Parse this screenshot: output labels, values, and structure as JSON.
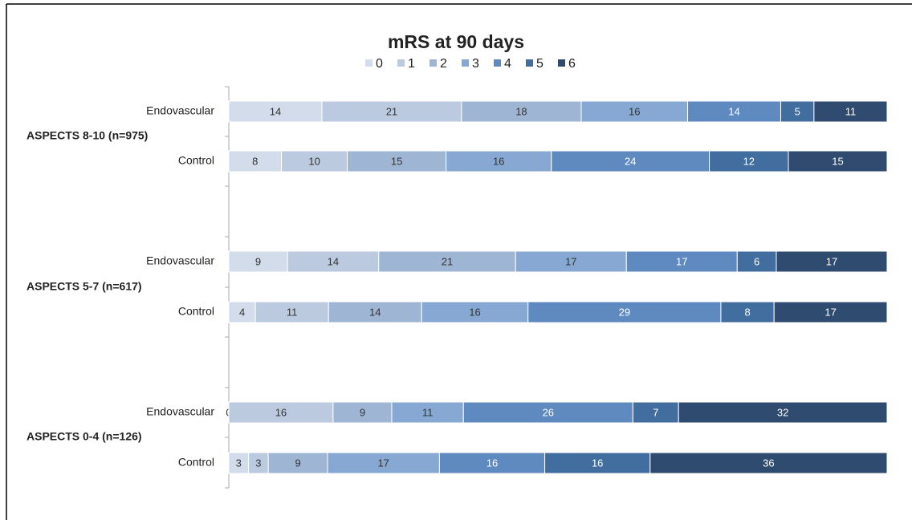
{
  "chart_data": {
    "type": "stacked-bar",
    "orientation": "horizontal",
    "title": "mRS at 90 days",
    "groups": [
      "ASPECTS 8-10 (n=975)",
      "ASPECTS 5-7 (n=617)",
      "ASPECTS 0-4 (n=126)"
    ],
    "categories": [
      "Endovascular",
      "Control",
      "Endovascular",
      "Control",
      "Endovascular",
      "Control"
    ],
    "series": [
      {
        "name": "0",
        "color": "#d3dcea",
        "values": [
          14,
          8,
          9,
          4,
          0,
          3
        ]
      },
      {
        "name": "1",
        "color": "#bccadf",
        "values": [
          21,
          10,
          14,
          11,
          16,
          3
        ]
      },
      {
        "name": "2",
        "color": "#9fb5d4",
        "values": [
          18,
          15,
          21,
          14,
          9,
          9
        ]
      },
      {
        "name": "3",
        "color": "#86a8d3",
        "values": [
          16,
          16,
          17,
          16,
          11,
          17
        ]
      },
      {
        "name": "4",
        "color": "#5f8ac0",
        "values": [
          14,
          24,
          17,
          29,
          26,
          16
        ]
      },
      {
        "name": "5",
        "color": "#416e9f",
        "values": [
          5,
          12,
          6,
          8,
          7,
          16
        ]
      },
      {
        "name": "6",
        "color": "#2f4b6f",
        "values": [
          11,
          15,
          17,
          17,
          32,
          36
        ]
      }
    ]
  }
}
